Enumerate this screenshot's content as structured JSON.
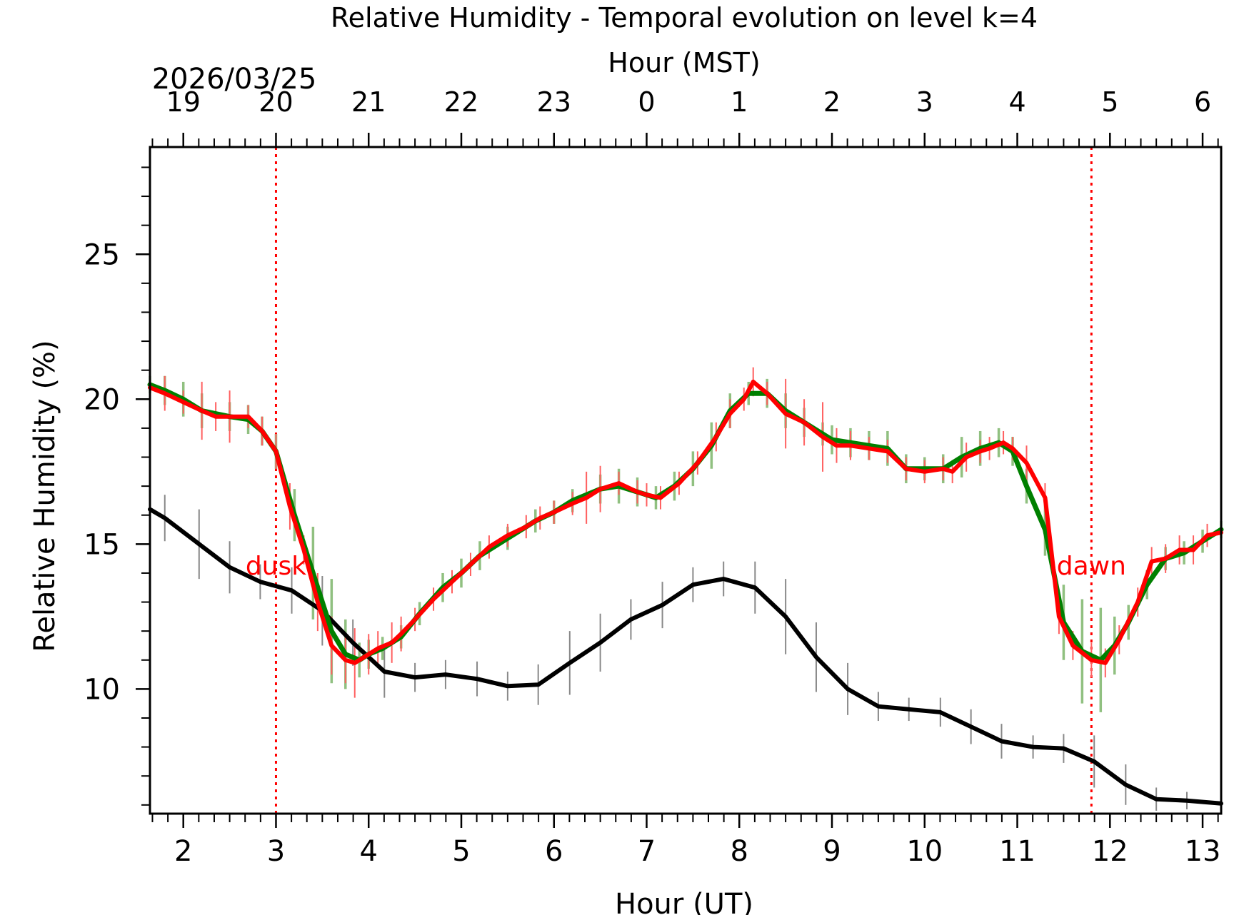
{
  "chart_data": {
    "type": "line",
    "title": "Relative Humidity - Temporal evolution on level k=4",
    "date_label": "2026/03/25",
    "xlabel": "Hour (UT)",
    "xlabel_top": "Hour (MST)",
    "ylabel": "Relative Humidity (%)",
    "xlim": [
      1.64,
      13.2
    ],
    "ylim": [
      5.7,
      28.7
    ],
    "x_ticks": [
      2,
      3,
      4,
      5,
      6,
      7,
      8,
      9,
      10,
      11,
      12,
      13
    ],
    "x_tick_labels": [
      "2",
      "3",
      "4",
      "5",
      "6",
      "7",
      "8",
      "9",
      "10",
      "11",
      "12",
      "13"
    ],
    "x_top_ticks": [
      1.64,
      2.64,
      3.64,
      4.64,
      5.64,
      6.64,
      7.64,
      8.64,
      9.64,
      10.64,
      11.64,
      12.64
    ],
    "x_top_tick_labels": [
      "19",
      "20",
      "21",
      "22",
      "23",
      "0",
      "1",
      "2",
      "3",
      "4",
      "5",
      "6"
    ],
    "y_ticks": [
      10,
      15,
      20,
      25
    ],
    "y_tick_labels": [
      "10",
      "15",
      "20",
      "25"
    ],
    "annotations": [
      {
        "text": "dusk",
        "x": 3.0,
        "y": 14.3,
        "color": "#ff0000"
      },
      {
        "text": "dawn",
        "x": 11.8,
        "y": 14.3,
        "color": "#ff0000"
      }
    ],
    "vlines": [
      {
        "name": "dusk",
        "x": 3.0,
        "color": "#ff0000"
      },
      {
        "name": "dawn",
        "x": 11.8,
        "color": "#ff0000"
      }
    ],
    "series": [
      {
        "name": "black",
        "color": "#000000",
        "errcolor": "#888888",
        "x": [
          1.64,
          1.8,
          2.17,
          2.5,
          2.83,
          3.17,
          3.5,
          3.83,
          4.17,
          4.5,
          4.83,
          5.17,
          5.5,
          5.83,
          6.17,
          6.5,
          6.83,
          7.17,
          7.5,
          7.83,
          8.17,
          8.5,
          8.83,
          9.17,
          9.5,
          9.83,
          10.17,
          10.5,
          10.83,
          11.17,
          11.5,
          11.83,
          12.17,
          12.5,
          12.83,
          13.2
        ],
        "values": [
          16.2,
          15.9,
          15.0,
          14.2,
          13.7,
          13.4,
          12.7,
          11.6,
          10.6,
          10.4,
          10.5,
          10.35,
          10.1,
          10.15,
          10.9,
          11.6,
          12.4,
          12.9,
          13.6,
          13.8,
          13.5,
          12.5,
          11.1,
          10.0,
          9.4,
          9.3,
          9.2,
          8.7,
          8.2,
          8.0,
          7.95,
          7.5,
          6.7,
          6.2,
          6.15,
          6.05
        ],
        "err": [
          0.0,
          0.8,
          1.2,
          0.9,
          0.6,
          0.8,
          1.2,
          0.8,
          0.9,
          0.5,
          0.5,
          0.6,
          0.5,
          0.7,
          1.1,
          1.0,
          0.7,
          0.8,
          0.6,
          0.6,
          0.9,
          1.3,
          1.2,
          0.9,
          0.5,
          0.4,
          0.5,
          0.6,
          0.6,
          0.4,
          0.5,
          0.9,
          0.7,
          0.4,
          0.3,
          0.0
        ]
      },
      {
        "name": "green",
        "color": "#008000",
        "errcolor": "#90c080",
        "x": [
          1.64,
          1.8,
          2.0,
          2.2,
          2.5,
          2.7,
          2.85,
          3.0,
          3.2,
          3.4,
          3.6,
          3.75,
          3.9,
          4.0,
          4.15,
          4.35,
          4.55,
          4.8,
          5.0,
          5.2,
          5.5,
          5.8,
          6.0,
          6.2,
          6.5,
          6.7,
          6.9,
          7.1,
          7.3,
          7.5,
          7.7,
          7.9,
          8.1,
          8.3,
          8.5,
          8.7,
          8.9,
          9.0,
          9.2,
          9.4,
          9.6,
          9.8,
          10.0,
          10.2,
          10.4,
          10.6,
          10.8,
          10.95,
          11.1,
          11.3,
          11.5,
          11.7,
          11.9,
          12.05,
          12.2,
          12.4,
          12.6,
          12.8,
          13.0,
          13.2
        ],
        "values": [
          20.5,
          20.3,
          20.0,
          19.6,
          19.4,
          19.3,
          18.9,
          18.2,
          16.0,
          14.0,
          12.0,
          11.2,
          11.0,
          11.2,
          11.4,
          11.8,
          12.6,
          13.5,
          14.0,
          14.6,
          15.2,
          15.8,
          16.1,
          16.5,
          16.9,
          17.0,
          16.8,
          16.6,
          17.0,
          17.6,
          18.4,
          19.6,
          20.2,
          20.2,
          19.6,
          19.2,
          18.8,
          18.6,
          18.5,
          18.4,
          18.3,
          17.6,
          17.6,
          17.6,
          18.0,
          18.3,
          18.5,
          18.2,
          17.0,
          15.5,
          12.3,
          11.3,
          11.0,
          11.5,
          12.3,
          13.6,
          14.5,
          14.7,
          15.1,
          15.5
        ],
        "err": [
          0.3,
          0.5,
          0.6,
          0.6,
          0.5,
          0.5,
          0.5,
          0.6,
          0.9,
          1.6,
          1.8,
          1.2,
          0.6,
          0.5,
          0.4,
          0.4,
          0.4,
          0.5,
          0.5,
          0.5,
          0.4,
          0.4,
          0.4,
          0.4,
          0.5,
          0.6,
          0.5,
          0.4,
          0.5,
          0.6,
          0.8,
          0.6,
          0.4,
          0.5,
          0.6,
          0.5,
          0.4,
          0.5,
          0.5,
          0.5,
          0.6,
          0.5,
          0.4,
          0.5,
          0.7,
          0.6,
          0.5,
          0.5,
          0.6,
          0.9,
          1.3,
          1.8,
          1.8,
          1.0,
          0.6,
          0.5,
          0.4,
          0.4,
          0.4,
          0.3
        ]
      },
      {
        "name": "red",
        "color": "#ff0000",
        "errcolor": "#ff6060",
        "x": [
          1.64,
          1.8,
          2.0,
          2.2,
          2.35,
          2.5,
          2.7,
          2.85,
          3.0,
          3.15,
          3.3,
          3.45,
          3.6,
          3.75,
          3.85,
          4.0,
          4.1,
          4.25,
          4.35,
          4.5,
          4.7,
          4.9,
          5.1,
          5.3,
          5.5,
          5.7,
          5.85,
          6.0,
          6.2,
          6.35,
          6.5,
          6.7,
          6.9,
          7.0,
          7.15,
          7.35,
          7.55,
          7.75,
          7.9,
          8.05,
          8.15,
          8.3,
          8.5,
          8.7,
          8.9,
          9.05,
          9.2,
          9.4,
          9.6,
          9.8,
          10.0,
          10.2,
          10.3,
          10.45,
          10.6,
          10.7,
          10.85,
          10.95,
          11.1,
          11.3,
          11.45,
          11.6,
          11.8,
          11.95,
          12.1,
          12.3,
          12.45,
          12.6,
          12.75,
          12.9,
          13.05,
          13.2
        ],
        "values": [
          20.4,
          20.2,
          19.9,
          19.6,
          19.4,
          19.4,
          19.4,
          18.9,
          18.2,
          16.3,
          14.8,
          13.0,
          11.5,
          11.0,
          10.9,
          11.2,
          11.4,
          11.6,
          11.9,
          12.4,
          13.1,
          13.7,
          14.3,
          14.9,
          15.3,
          15.6,
          15.9,
          16.1,
          16.4,
          16.6,
          16.9,
          17.1,
          16.8,
          16.7,
          16.6,
          17.1,
          17.8,
          18.7,
          19.5,
          20.0,
          20.6,
          20.2,
          19.5,
          19.2,
          18.7,
          18.4,
          18.4,
          18.3,
          18.2,
          17.6,
          17.5,
          17.6,
          17.5,
          18.0,
          18.2,
          18.3,
          18.5,
          18.3,
          17.8,
          16.6,
          12.5,
          11.5,
          11.0,
          10.9,
          11.7,
          13.0,
          14.4,
          14.5,
          14.8,
          14.8,
          15.3,
          15.4
        ],
        "err": [
          0.0,
          0.6,
          0.4,
          1.0,
          0.5,
          0.9,
          0.4,
          0.5,
          0.6,
          0.8,
          0.5,
          1.0,
          1.0,
          0.8,
          1.2,
          0.7,
          0.6,
          0.7,
          0.6,
          0.4,
          0.4,
          0.4,
          0.4,
          0.4,
          0.4,
          0.4,
          0.4,
          0.4,
          0.4,
          0.9,
          0.8,
          0.4,
          0.4,
          0.4,
          0.4,
          0.4,
          0.4,
          0.5,
          0.5,
          0.4,
          0.5,
          0.4,
          1.2,
          0.8,
          1.2,
          0.6,
          0.5,
          0.4,
          0.4,
          0.4,
          0.4,
          0.4,
          0.4,
          0.5,
          0.4,
          0.4,
          0.4,
          0.4,
          0.6,
          0.5,
          0.6,
          0.5,
          0.6,
          0.5,
          0.5,
          0.5,
          0.5,
          0.5,
          0.5,
          0.5,
          0.4,
          0.4
        ]
      }
    ]
  }
}
